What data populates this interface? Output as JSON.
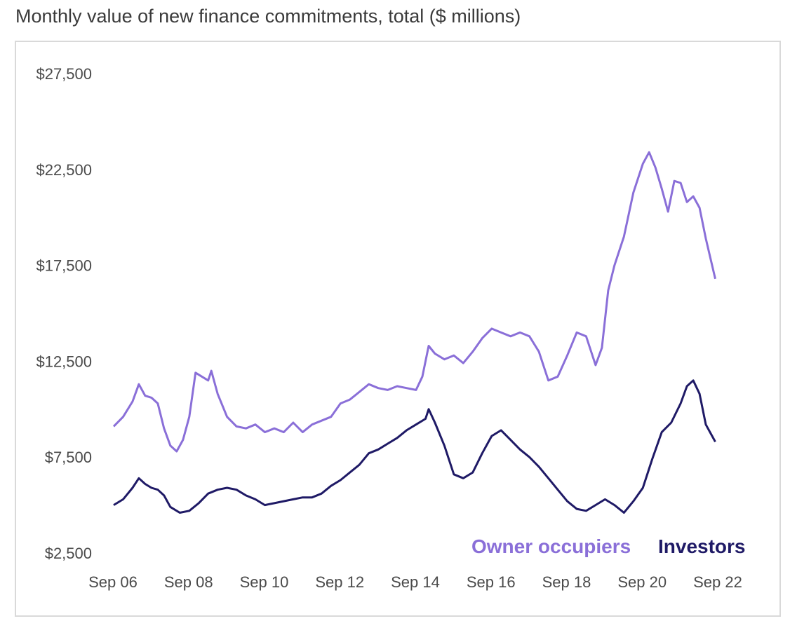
{
  "title": "Monthly value of new finance commitments, total ($ millions)",
  "colors": {
    "owner_occupiers": "#8A6FD8",
    "investors": "#1F1A66",
    "border": "#d9d9d9",
    "text": "#3a3a3a"
  },
  "legend": [
    {
      "label": "Owner occupiers",
      "color": "#8A6FD8"
    },
    {
      "label": "Investors",
      "color": "#1F1A66"
    }
  ],
  "chart_data": {
    "type": "line",
    "title": "Monthly value of new finance commitments, total ($ millions)",
    "xlabel": "",
    "ylabel": "",
    "x_tick_labels": [
      "Sep 06",
      "Sep 08",
      "Sep 10",
      "Sep 12",
      "Sep 14",
      "Sep 16",
      "Sep 18",
      "Sep 20",
      "Sep 22"
    ],
    "y_tick_labels": [
      "$2,500",
      "$7,500",
      "$12,500",
      "$17,500",
      "$22,500",
      "$27,500"
    ],
    "y_ticks": [
      2500,
      7500,
      12500,
      17500,
      22500,
      27500
    ],
    "ylim": [
      2500,
      27500
    ],
    "grid": false,
    "legend_position": "bottom-right",
    "series": [
      {
        "name": "Owner occupiers",
        "color": "#8A6FD8",
        "points": [
          [
            "2006-09",
            9100
          ],
          [
            "2006-12",
            9600
          ],
          [
            "2007-03",
            10400
          ],
          [
            "2007-05",
            11300
          ],
          [
            "2007-07",
            10700
          ],
          [
            "2007-09",
            10600
          ],
          [
            "2007-11",
            10300
          ],
          [
            "2008-01",
            9000
          ],
          [
            "2008-03",
            8100
          ],
          [
            "2008-05",
            7800
          ],
          [
            "2008-07",
            8400
          ],
          [
            "2008-09",
            9600
          ],
          [
            "2008-11",
            11900
          ],
          [
            "2009-01",
            11700
          ],
          [
            "2009-03",
            11500
          ],
          [
            "2009-04",
            12000
          ],
          [
            "2009-06",
            10800
          ],
          [
            "2009-09",
            9600
          ],
          [
            "2009-12",
            9100
          ],
          [
            "2010-03",
            9000
          ],
          [
            "2010-06",
            9200
          ],
          [
            "2010-09",
            8800
          ],
          [
            "2010-12",
            9000
          ],
          [
            "2011-03",
            8800
          ],
          [
            "2011-06",
            9300
          ],
          [
            "2011-09",
            8800
          ],
          [
            "2011-12",
            9200
          ],
          [
            "2012-03",
            9400
          ],
          [
            "2012-06",
            9600
          ],
          [
            "2012-09",
            10300
          ],
          [
            "2012-12",
            10500
          ],
          [
            "2013-03",
            10900
          ],
          [
            "2013-06",
            11300
          ],
          [
            "2013-09",
            11100
          ],
          [
            "2013-12",
            11000
          ],
          [
            "2014-03",
            11200
          ],
          [
            "2014-06",
            11100
          ],
          [
            "2014-09",
            11000
          ],
          [
            "2014-11",
            11700
          ],
          [
            "2015-01",
            13300
          ],
          [
            "2015-03",
            12900
          ],
          [
            "2015-06",
            12600
          ],
          [
            "2015-09",
            12800
          ],
          [
            "2015-12",
            12400
          ],
          [
            "2016-03",
            13000
          ],
          [
            "2016-06",
            13700
          ],
          [
            "2016-09",
            14200
          ],
          [
            "2016-12",
            14000
          ],
          [
            "2017-03",
            13800
          ],
          [
            "2017-06",
            14000
          ],
          [
            "2017-09",
            13800
          ],
          [
            "2017-12",
            13000
          ],
          [
            "2018-03",
            11500
          ],
          [
            "2018-06",
            11700
          ],
          [
            "2018-09",
            12800
          ],
          [
            "2018-12",
            14000
          ],
          [
            "2019-03",
            13800
          ],
          [
            "2019-06",
            12300
          ],
          [
            "2019-08",
            13200
          ],
          [
            "2019-10",
            16200
          ],
          [
            "2019-12",
            17500
          ],
          [
            "2020-03",
            19000
          ],
          [
            "2020-06",
            21300
          ],
          [
            "2020-09",
            22800
          ],
          [
            "2020-11",
            23400
          ],
          [
            "2021-01",
            22600
          ],
          [
            "2021-03",
            21500
          ],
          [
            "2021-05",
            20300
          ],
          [
            "2021-07",
            21900
          ],
          [
            "2021-09",
            21800
          ],
          [
            "2021-11",
            20800
          ],
          [
            "2022-01",
            21100
          ],
          [
            "2022-03",
            20500
          ],
          [
            "2022-05",
            18900
          ],
          [
            "2022-08",
            16800
          ]
        ]
      },
      {
        "name": "Investors",
        "color": "#1F1A66",
        "points": [
          [
            "2006-09",
            5000
          ],
          [
            "2006-12",
            5300
          ],
          [
            "2007-03",
            5900
          ],
          [
            "2007-05",
            6400
          ],
          [
            "2007-07",
            6100
          ],
          [
            "2007-09",
            5900
          ],
          [
            "2007-11",
            5800
          ],
          [
            "2008-01",
            5500
          ],
          [
            "2008-03",
            4900
          ],
          [
            "2008-06",
            4600
          ],
          [
            "2008-09",
            4700
          ],
          [
            "2008-12",
            5100
          ],
          [
            "2009-03",
            5600
          ],
          [
            "2009-06",
            5800
          ],
          [
            "2009-09",
            5900
          ],
          [
            "2009-12",
            5800
          ],
          [
            "2010-03",
            5500
          ],
          [
            "2010-06",
            5300
          ],
          [
            "2010-09",
            5000
          ],
          [
            "2010-12",
            5100
          ],
          [
            "2011-03",
            5200
          ],
          [
            "2011-06",
            5300
          ],
          [
            "2011-09",
            5400
          ],
          [
            "2011-12",
            5400
          ],
          [
            "2012-03",
            5600
          ],
          [
            "2012-06",
            6000
          ],
          [
            "2012-09",
            6300
          ],
          [
            "2012-12",
            6700
          ],
          [
            "2013-03",
            7100
          ],
          [
            "2013-06",
            7700
          ],
          [
            "2013-09",
            7900
          ],
          [
            "2013-12",
            8200
          ],
          [
            "2014-03",
            8500
          ],
          [
            "2014-06",
            8900
          ],
          [
            "2014-09",
            9200
          ],
          [
            "2014-12",
            9500
          ],
          [
            "2015-01",
            10000
          ],
          [
            "2015-03",
            9300
          ],
          [
            "2015-06",
            8100
          ],
          [
            "2015-09",
            6600
          ],
          [
            "2015-12",
            6400
          ],
          [
            "2016-03",
            6700
          ],
          [
            "2016-06",
            7700
          ],
          [
            "2016-09",
            8600
          ],
          [
            "2016-12",
            8900
          ],
          [
            "2017-03",
            8400
          ],
          [
            "2017-06",
            7900
          ],
          [
            "2017-09",
            7500
          ],
          [
            "2017-12",
            7000
          ],
          [
            "2018-03",
            6400
          ],
          [
            "2018-06",
            5800
          ],
          [
            "2018-09",
            5200
          ],
          [
            "2018-12",
            4800
          ],
          [
            "2019-03",
            4700
          ],
          [
            "2019-06",
            5000
          ],
          [
            "2019-09",
            5300
          ],
          [
            "2019-12",
            5000
          ],
          [
            "2020-03",
            4600
          ],
          [
            "2020-06",
            5200
          ],
          [
            "2020-09",
            5900
          ],
          [
            "2020-12",
            7400
          ],
          [
            "2021-03",
            8800
          ],
          [
            "2021-06",
            9300
          ],
          [
            "2021-09",
            10300
          ],
          [
            "2021-11",
            11200
          ],
          [
            "2022-01",
            11500
          ],
          [
            "2022-03",
            10800
          ],
          [
            "2022-05",
            9200
          ],
          [
            "2022-08",
            8300
          ]
        ]
      }
    ]
  }
}
